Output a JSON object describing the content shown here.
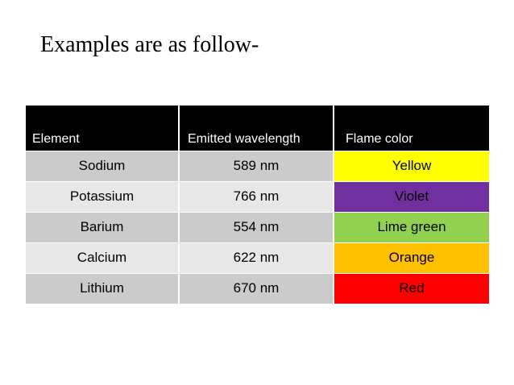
{
  "title": "Examples are as follow-",
  "table": {
    "headers": [
      "Element",
      "Emitted wavelength",
      "Flame color"
    ],
    "rows": [
      {
        "element": "Sodium",
        "wavelength": "589 nm",
        "color_name": "Yellow",
        "swatch": "#ffff00",
        "text_color": "#000000"
      },
      {
        "element": "Potassium",
        "wavelength": "766 nm",
        "color_name": "Violet",
        "swatch": "#7030a0",
        "text_color": "#000000"
      },
      {
        "element": "Barium",
        "wavelength": "554 nm",
        "color_name": "Lime green",
        "swatch": "#92d050",
        "text_color": "#000000"
      },
      {
        "element": "Calcium",
        "wavelength": "622 nm",
        "color_name": "Orange",
        "swatch": "#ffc000",
        "text_color": "#000000"
      },
      {
        "element": "Lithium",
        "wavelength": "670 nm",
        "color_name": "Red",
        "swatch": "#ff0000",
        "text_color": "#000000"
      }
    ]
  }
}
